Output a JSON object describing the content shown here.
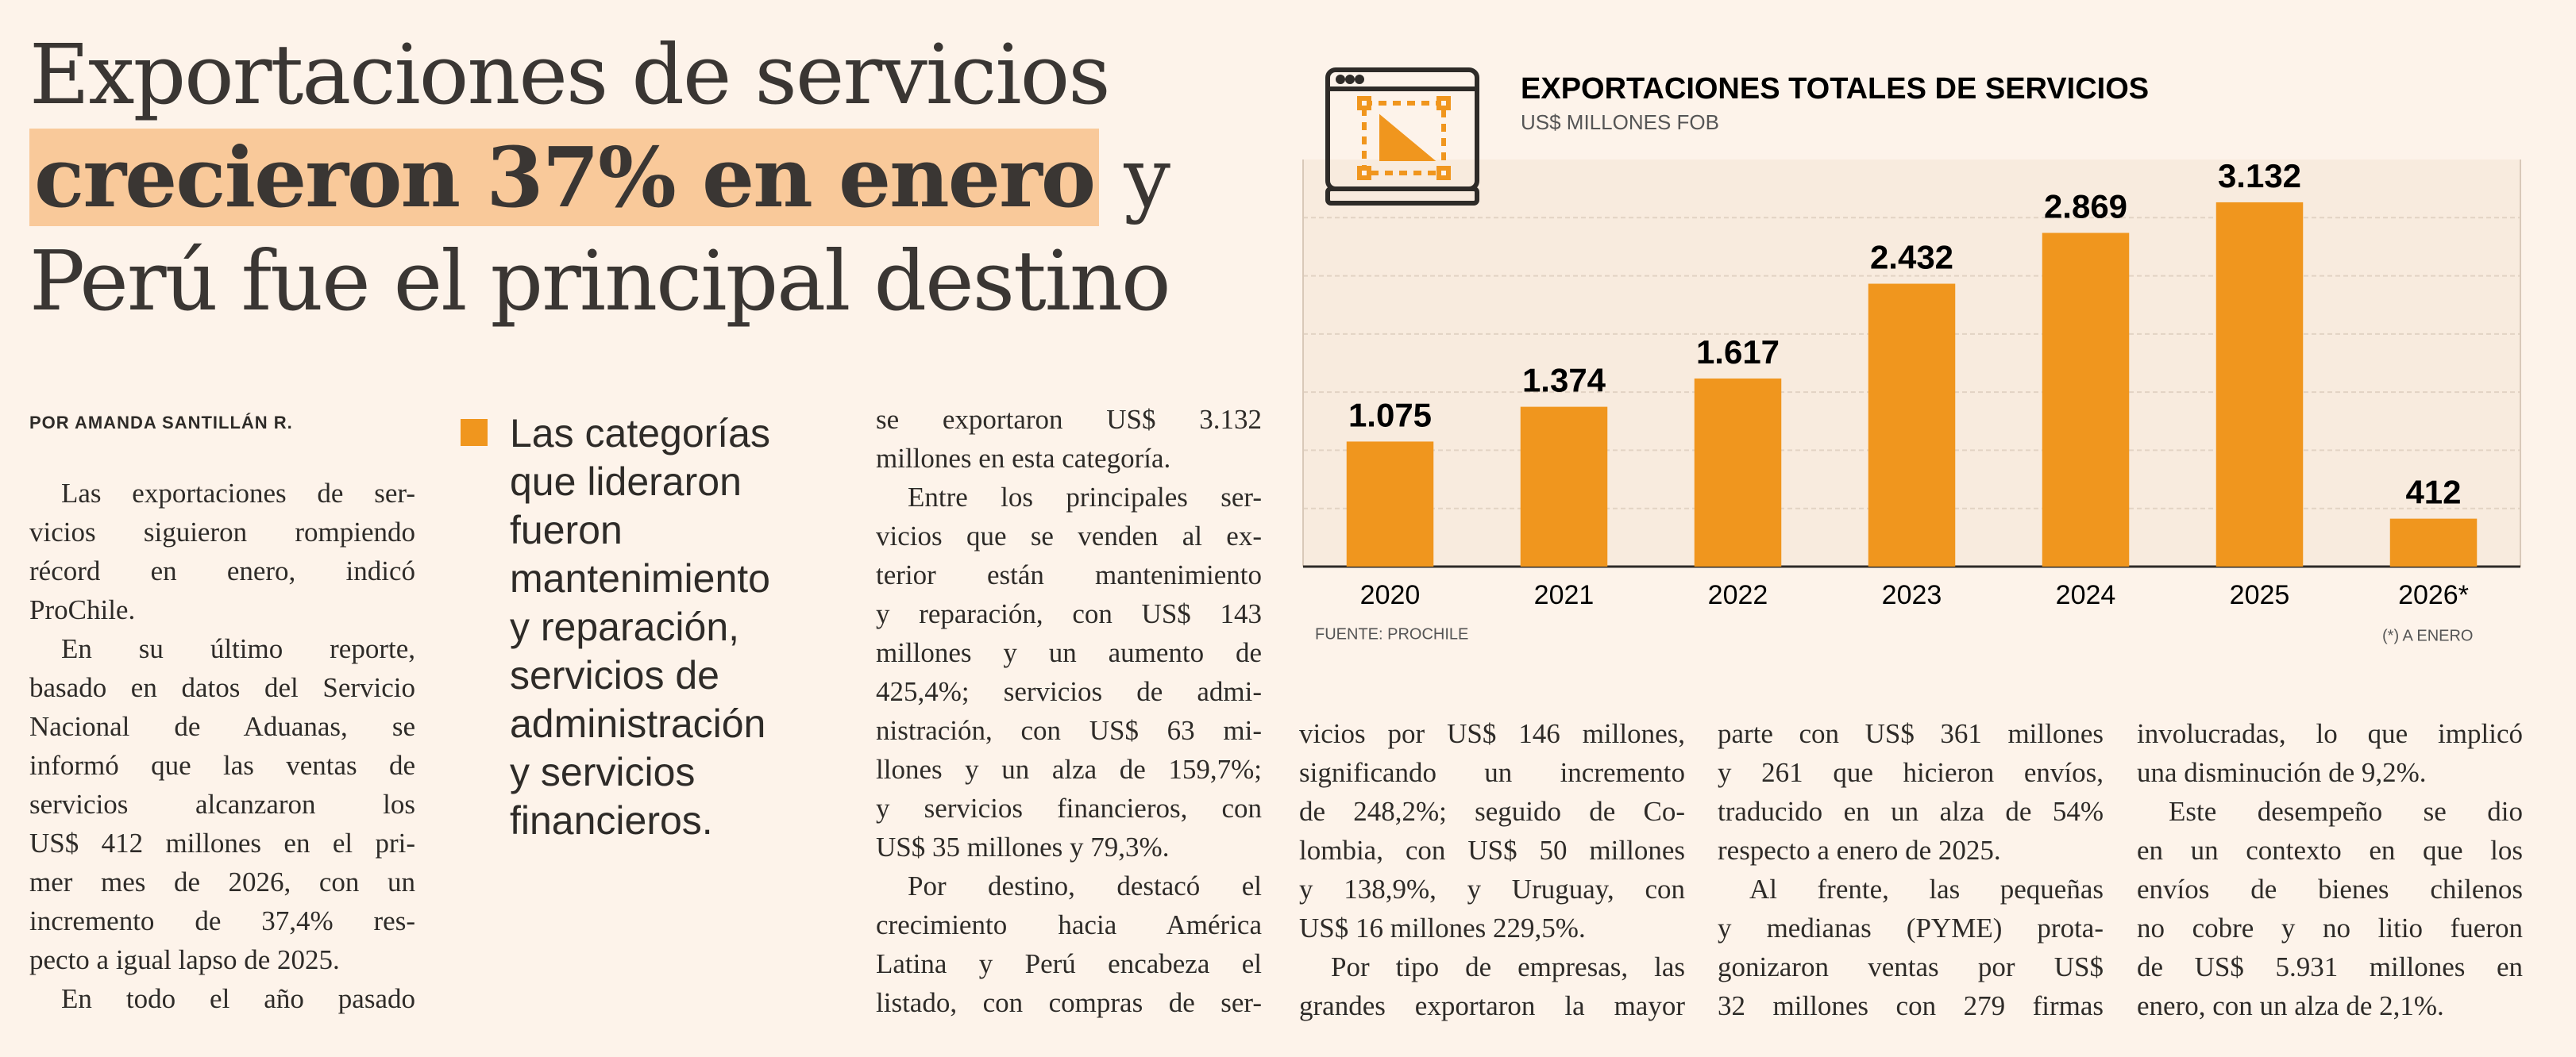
{
  "headline": {
    "line_1": "Exportaciones de servicios",
    "highlight": "crecieron 37% en enero",
    "line_2_tail": "y",
    "line_3": "Perú fue el principal destino"
  },
  "byline": "POR AMANDA SANTILLÁN R.",
  "callout": [
    "Las categorías",
    "que lideraron",
    "fueron",
    "mantenimiento",
    "y reparación,",
    "servicios de",
    "administración",
    "y servicios",
    "financieros."
  ],
  "body": {
    "columns": [
      [
        [
          "Las exportaciones de ser-",
          "vicios siguieron rompiendo",
          "récord en enero, indicó",
          "ProChile."
        ],
        [
          "En su último reporte,",
          "basado en datos del Servicio",
          "Nacional de Aduanas, se",
          "informó que las ventas de",
          "servicios alcanzaron los",
          "US$ 412 millones en el pri-",
          "mer mes de 2026, con un",
          "incremento de 37,4% res-",
          "pecto a igual lapso de 2025."
        ],
        [
          "En todo el año pasado"
        ]
      ],
      [
        [
          "se exportaron US$ 3.132",
          "millones en esta categoría."
        ],
        [
          "Entre los principales ser-",
          "vicios que se venden al ex-",
          "terior están mantenimiento",
          "y reparación, con US$ 143",
          "millones y un aumento de",
          "425,4%; servicios de admi-",
          "nistración, con US$ 63 mi-",
          "llones y un alza de 159,7%;",
          "y servicios financieros, con",
          "US$ 35 millones y 79,3%."
        ],
        [
          "Por destino, destacó el",
          "crecimiento hacia América",
          "Latina y Perú encabeza el",
          "listado, con compras de ser-"
        ]
      ],
      [
        [
          "vicios por US$ 146 millones,",
          "significando un incremento",
          "de 248,2%; seguido de Co-",
          "lombia, con US$ 50 millones",
          "y 138,9%, y Uruguay, con",
          "US$ 16 millones 229,5%."
        ],
        [
          "Por tipo de empresas, las",
          "grandes exportaron la mayor"
        ]
      ],
      [
        [
          "parte con US$ 361 millones",
          "y 261 que hicieron envíos,",
          "traducido en un alza de 54%",
          "respecto a enero de 2025."
        ],
        [
          "Al frente, las pequeñas",
          "y medianas (PYME) prota-",
          "gonizaron ventas por US$",
          "32 millones con 279 firmas"
        ]
      ],
      [
        [
          "involucradas, lo que implicó",
          "una disminución de 9,2%."
        ],
        [
          "Este desempeño se dio",
          "en un contexto en que los",
          "envíos de bienes chilenos",
          "no cobre y no litio fueron",
          "de US$ 5.931 millones en",
          "enero, con un alza de 2,1%."
        ]
      ]
    ]
  },
  "chart_data": {
    "type": "bar",
    "title": "EXPORTACIONES TOTALES DE SERVICIOS",
    "subtitle": "US$ MILLONES FOB",
    "categories": [
      "2020",
      "2021",
      "2022",
      "2023",
      "2024",
      "2025",
      "2026*"
    ],
    "values": [
      1075,
      1374,
      1617,
      2432,
      2869,
      3132,
      412
    ],
    "value_labels": [
      "1.075",
      "1.374",
      "1.617",
      "2.432",
      "2.869",
      "3.132",
      "412"
    ],
    "color": "#f0961e",
    "ylim": [
      0,
      3500
    ],
    "source": "FUENTE: PROCHILE",
    "note": "(*) A ENERO"
  }
}
